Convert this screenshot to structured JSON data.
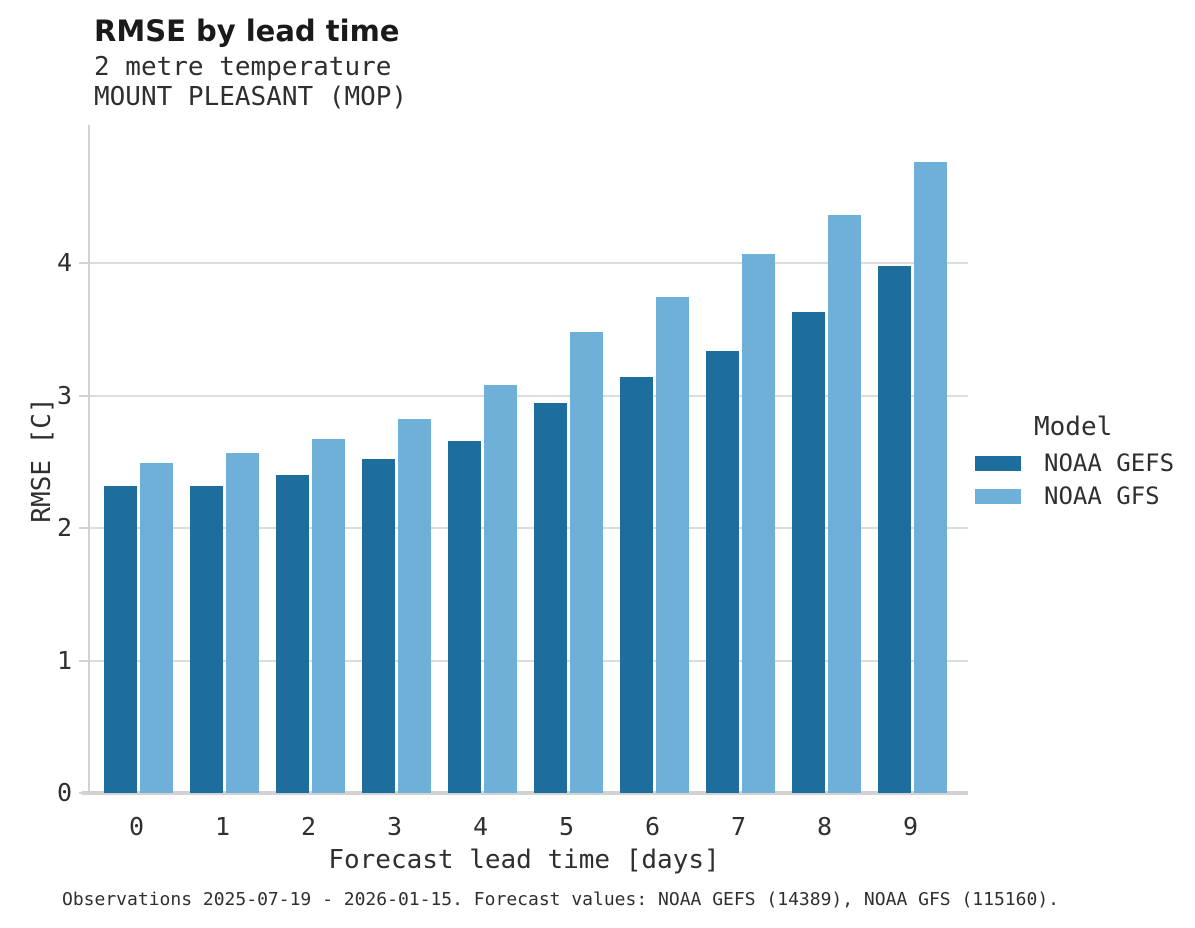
{
  "header": {
    "title": "RMSE by lead time",
    "subtitle_line1": "2 metre temperature",
    "subtitle_line2": "MOUNT PLEASANT (MOP)"
  },
  "legend": {
    "title": "Model",
    "entries": [
      {
        "label": "NOAA GEFS",
        "color": "#1d6d9d"
      },
      {
        "label": "NOAA GFS",
        "color": "#6fb0d8"
      }
    ]
  },
  "caption": "Observations 2025-07-19 - 2026-01-15. Forecast values: NOAA GEFS (14389), NOAA GFS (115160).",
  "colors": {
    "noaa_gefs": "#1d6d9d",
    "noaa_gfs": "#6fb0d8",
    "axis": "#d2d2d2",
    "gridline": "#dcdcdc",
    "text": "#2f2f2f"
  },
  "chart_data": {
    "type": "bar",
    "title": "RMSE by lead time",
    "subtitle": "2 metre temperature",
    "station": "MOUNT PLEASANT (MOP)",
    "categories": [
      0,
      1,
      2,
      3,
      4,
      5,
      6,
      7,
      8,
      9
    ],
    "series": [
      {
        "name": "NOAA GEFS",
        "color": "#1d6d9d",
        "values": [
          2.32,
          2.32,
          2.4,
          2.52,
          2.66,
          2.94,
          3.14,
          3.34,
          3.63,
          3.98
        ]
      },
      {
        "name": "NOAA GFS",
        "color": "#6fb0d8",
        "values": [
          2.49,
          2.57,
          2.67,
          2.82,
          3.08,
          3.48,
          3.74,
          4.07,
          4.36,
          4.76
        ]
      }
    ],
    "xlabel": "Forecast lead time [days]",
    "ylabel": "RMSE [C]",
    "ylim": [
      0,
      5.04
    ],
    "yticks": [
      0,
      1,
      2,
      3,
      4
    ],
    "grid": "horizontal gridlines at integer y ticks, drawn behind bars",
    "legend_position": "right-center",
    "legend_title": "Model",
    "caption": "Observations 2025-07-19 - 2026-01-15. Forecast values: NOAA GEFS (14389), NOAA GFS (115160)."
  }
}
